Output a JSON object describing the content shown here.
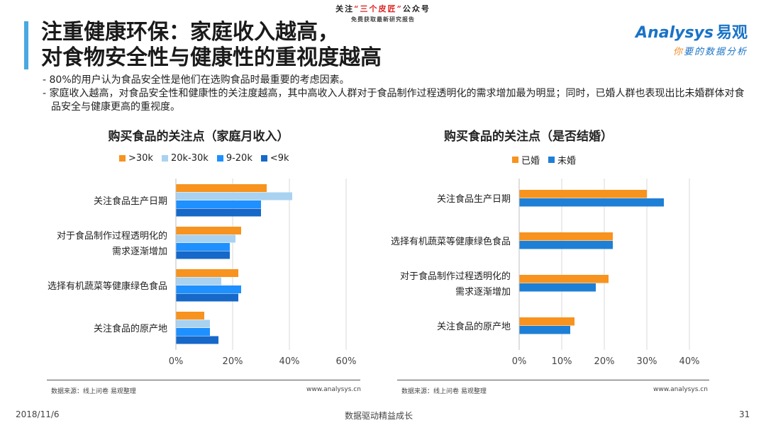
{
  "banner": {
    "line1_pre": "关注",
    "line1_hl": "“三个皮匠”",
    "line1_post": "公众号",
    "line2": "免费获取最新研究报告"
  },
  "title": {
    "line1": "注重健康环保：家庭收入越高，",
    "line2": "对食物安全性与健康性的重视度越高"
  },
  "logo": {
    "brand": "Analysys",
    "brand_cn": "易观",
    "slogan_first": "你",
    "slogan_rest": "要的数据分析"
  },
  "bullets": [
    "- 80%的用户认为食品安全性是他们在选购食品时最重要的考虑因素。",
    "- 家庭收入越高，对食品安全性和健康性的关注度越高，其中高收入人群对于食品制作过程透明化的需求增加最为明显；同时，已婚人群也表现出比未婚群体对食品安全与健康更高的重视度。"
  ],
  "footer": {
    "date": "2018/11/6",
    "center": "数据驱动精益成长",
    "page": "31"
  },
  "charts": {
    "left": {
      "source": "数据来源：线上问卷 易观整理",
      "site": "www.analysys.cn"
    },
    "right": {
      "source": "数据来源：线上问卷 易观整理",
      "site": "www.analysys.cn"
    }
  },
  "chart_data": [
    {
      "type": "bar",
      "orientation": "horizontal",
      "title": "购买食品的关注点（家庭月收入）",
      "categories": [
        "关注食品生产日期",
        "对于食品制作过程透明化的需求逐渐增加",
        "选择有机蔬菜等健康绿色食品",
        "关注食品的原产地"
      ],
      "category_lines": [
        [
          "关注食品生产日期"
        ],
        [
          "对于食品制作过程透明化的",
          "需求逐渐增加"
        ],
        [
          "选择有机蔬菜等健康绿色食品"
        ],
        [
          "关注食品的原产地"
        ]
      ],
      "series": [
        {
          "name": ">30k",
          "color": "#f7931e",
          "values": [
            32,
            23,
            22,
            10
          ]
        },
        {
          "name": "20k-30k",
          "color": "#a9d2f0",
          "values": [
            41,
            21,
            16,
            12
          ]
        },
        {
          "name": "9-20k",
          "color": "#1e90ff",
          "values": [
            30,
            19,
            23,
            12
          ]
        },
        {
          "name": "<9k",
          "color": "#1668c9",
          "values": [
            30,
            19,
            22,
            15
          ]
        }
      ],
      "xlim": [
        0,
        60
      ],
      "xticks": [
        "0%",
        "20%",
        "40%",
        "60%"
      ],
      "tick_values": [
        0,
        20,
        40,
        60
      ],
      "grid": true,
      "legend": "top"
    },
    {
      "type": "bar",
      "orientation": "horizontal",
      "title": "购买食品的关注点（是否结婚）",
      "categories": [
        "关注食品生产日期",
        "选择有机蔬菜等健康绿色食品",
        "对于食品制作过程透明化的需求逐渐增加",
        "关注食品的原产地"
      ],
      "category_lines": [
        [
          "关注食品生产日期"
        ],
        [
          "选择有机蔬菜等健康绿色食品"
        ],
        [
          "对于食品制作过程透明化的",
          "需求逐渐增加"
        ],
        [
          "关注食品的原产地"
        ]
      ],
      "series": [
        {
          "name": "已婚",
          "color": "#f7931e",
          "values": [
            30,
            22,
            21,
            13
          ]
        },
        {
          "name": "未婚",
          "color": "#1e7fd6",
          "values": [
            34,
            22,
            18,
            12
          ]
        }
      ],
      "xlim": [
        0,
        40
      ],
      "xticks": [
        "0%",
        "10%",
        "20%",
        "30%",
        "40%"
      ],
      "tick_values": [
        0,
        10,
        20,
        30,
        40
      ],
      "grid": true,
      "legend": "top"
    }
  ]
}
